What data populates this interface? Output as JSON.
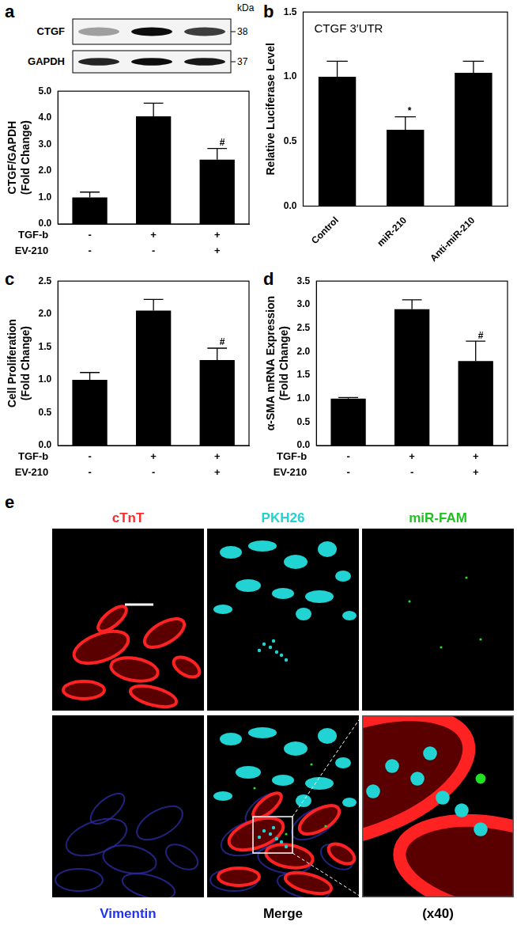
{
  "chart_data": [
    {
      "panel": "a",
      "type": "bar",
      "y_label": [
        "CTGF/GAPDH",
        "(Fold Change)"
      ],
      "x_rows": [
        {
          "label": "TGF-b",
          "values": [
            "-",
            "+",
            "+"
          ]
        },
        {
          "label": "EV-210",
          "values": [
            "-",
            "-",
            "+"
          ]
        }
      ],
      "values": [
        1.0,
        4.05,
        2.42
      ],
      "error": [
        0.2,
        0.5,
        0.42
      ],
      "significance": [
        null,
        null,
        "#"
      ],
      "color": "#000000",
      "ylim": [
        0,
        5
      ],
      "yticks": [
        {
          "value": 0,
          "label": "0.0"
        },
        {
          "value": 1,
          "label": "1.0"
        },
        {
          "value": 2,
          "label": "2.0"
        },
        {
          "value": 3,
          "label": "3.0"
        },
        {
          "value": 4,
          "label": "4.0"
        },
        {
          "value": 5,
          "label": "5.0"
        }
      ]
    },
    {
      "panel": "b",
      "type": "bar",
      "y_label": "Relative Luciferase Level",
      "annotation": "CTGF 3′UTR",
      "categories": [
        "Control",
        "miR-210",
        "Anti-miR-210"
      ],
      "values": [
        1.0,
        0.59,
        1.03
      ],
      "error": [
        0.12,
        0.1,
        0.09
      ],
      "significance": [
        null,
        "*",
        null
      ],
      "color": "#000000",
      "ylim": [
        0,
        1.5
      ],
      "yticks": [
        {
          "value": 0,
          "label": "0.0"
        },
        {
          "value": 0.5,
          "label": "0.5"
        },
        {
          "value": 1,
          "label": "1.0"
        },
        {
          "value": 1.5,
          "label": "1.5"
        }
      ]
    },
    {
      "panel": "c",
      "type": "bar",
      "y_label": [
        "Cell Proliferation",
        "(Fold Change)"
      ],
      "x_rows": [
        {
          "label": "TGF-b",
          "values": [
            "-",
            "+",
            "+"
          ]
        },
        {
          "label": "EV-210",
          "values": [
            "-",
            "-",
            "+"
          ]
        }
      ],
      "values": [
        1.0,
        2.05,
        1.3
      ],
      "error": [
        0.11,
        0.17,
        0.18
      ],
      "significance": [
        null,
        null,
        "#"
      ],
      "color": "#000000",
      "ylim": [
        0,
        2.5
      ],
      "yticks": [
        {
          "value": 0,
          "label": "0.0"
        },
        {
          "value": 0.5,
          "label": "0.5"
        },
        {
          "value": 1,
          "label": "1.0"
        },
        {
          "value": 1.5,
          "label": "1.5"
        },
        {
          "value": 2,
          "label": "2.0"
        },
        {
          "value": 2.5,
          "label": "2.5"
        }
      ]
    },
    {
      "panel": "d",
      "type": "bar",
      "y_label": [
        "α-SMA mRNA Expression",
        "(Fold Change)"
      ],
      "x_rows": [
        {
          "label": "TGF-b",
          "values": [
            "-",
            "+",
            "+"
          ]
        },
        {
          "label": "EV-210",
          "values": [
            "-",
            "-",
            "+"
          ]
        }
      ],
      "values": [
        1.0,
        2.9,
        1.8
      ],
      "error": [
        0.02,
        0.2,
        0.42
      ],
      "significance": [
        null,
        null,
        "#"
      ],
      "color": "#000000",
      "ylim": [
        0,
        3.5
      ],
      "yticks": [
        {
          "value": 0,
          "label": "0.0"
        },
        {
          "value": 0.5,
          "label": "0.5"
        },
        {
          "value": 1,
          "label": "1.0"
        },
        {
          "value": 1.5,
          "label": "1.5"
        },
        {
          "value": 2,
          "label": "2.0"
        },
        {
          "value": 2.5,
          "label": "2.5"
        },
        {
          "value": 3,
          "label": "3.0"
        },
        {
          "value": 3.5,
          "label": "3.5"
        }
      ]
    }
  ],
  "blot": {
    "panel": "a",
    "unit": "kDa",
    "rows": [
      {
        "label": "CTGF",
        "kda": 38
      },
      {
        "label": "GAPDH",
        "kda": 37
      }
    ]
  },
  "microscopy": {
    "panel": "e",
    "tiles": [
      {
        "label": "cTnT",
        "color": "#ff2a2a"
      },
      {
        "label": "PKH26",
        "color": "#22d3d3"
      },
      {
        "label": "miR-FAM",
        "color": "#22c022"
      },
      {
        "label": "Vimentin",
        "color": "#2233ee"
      },
      {
        "label": "Merge",
        "color": "#000000"
      },
      {
        "label": "(x40)",
        "color": "#000000"
      }
    ]
  }
}
